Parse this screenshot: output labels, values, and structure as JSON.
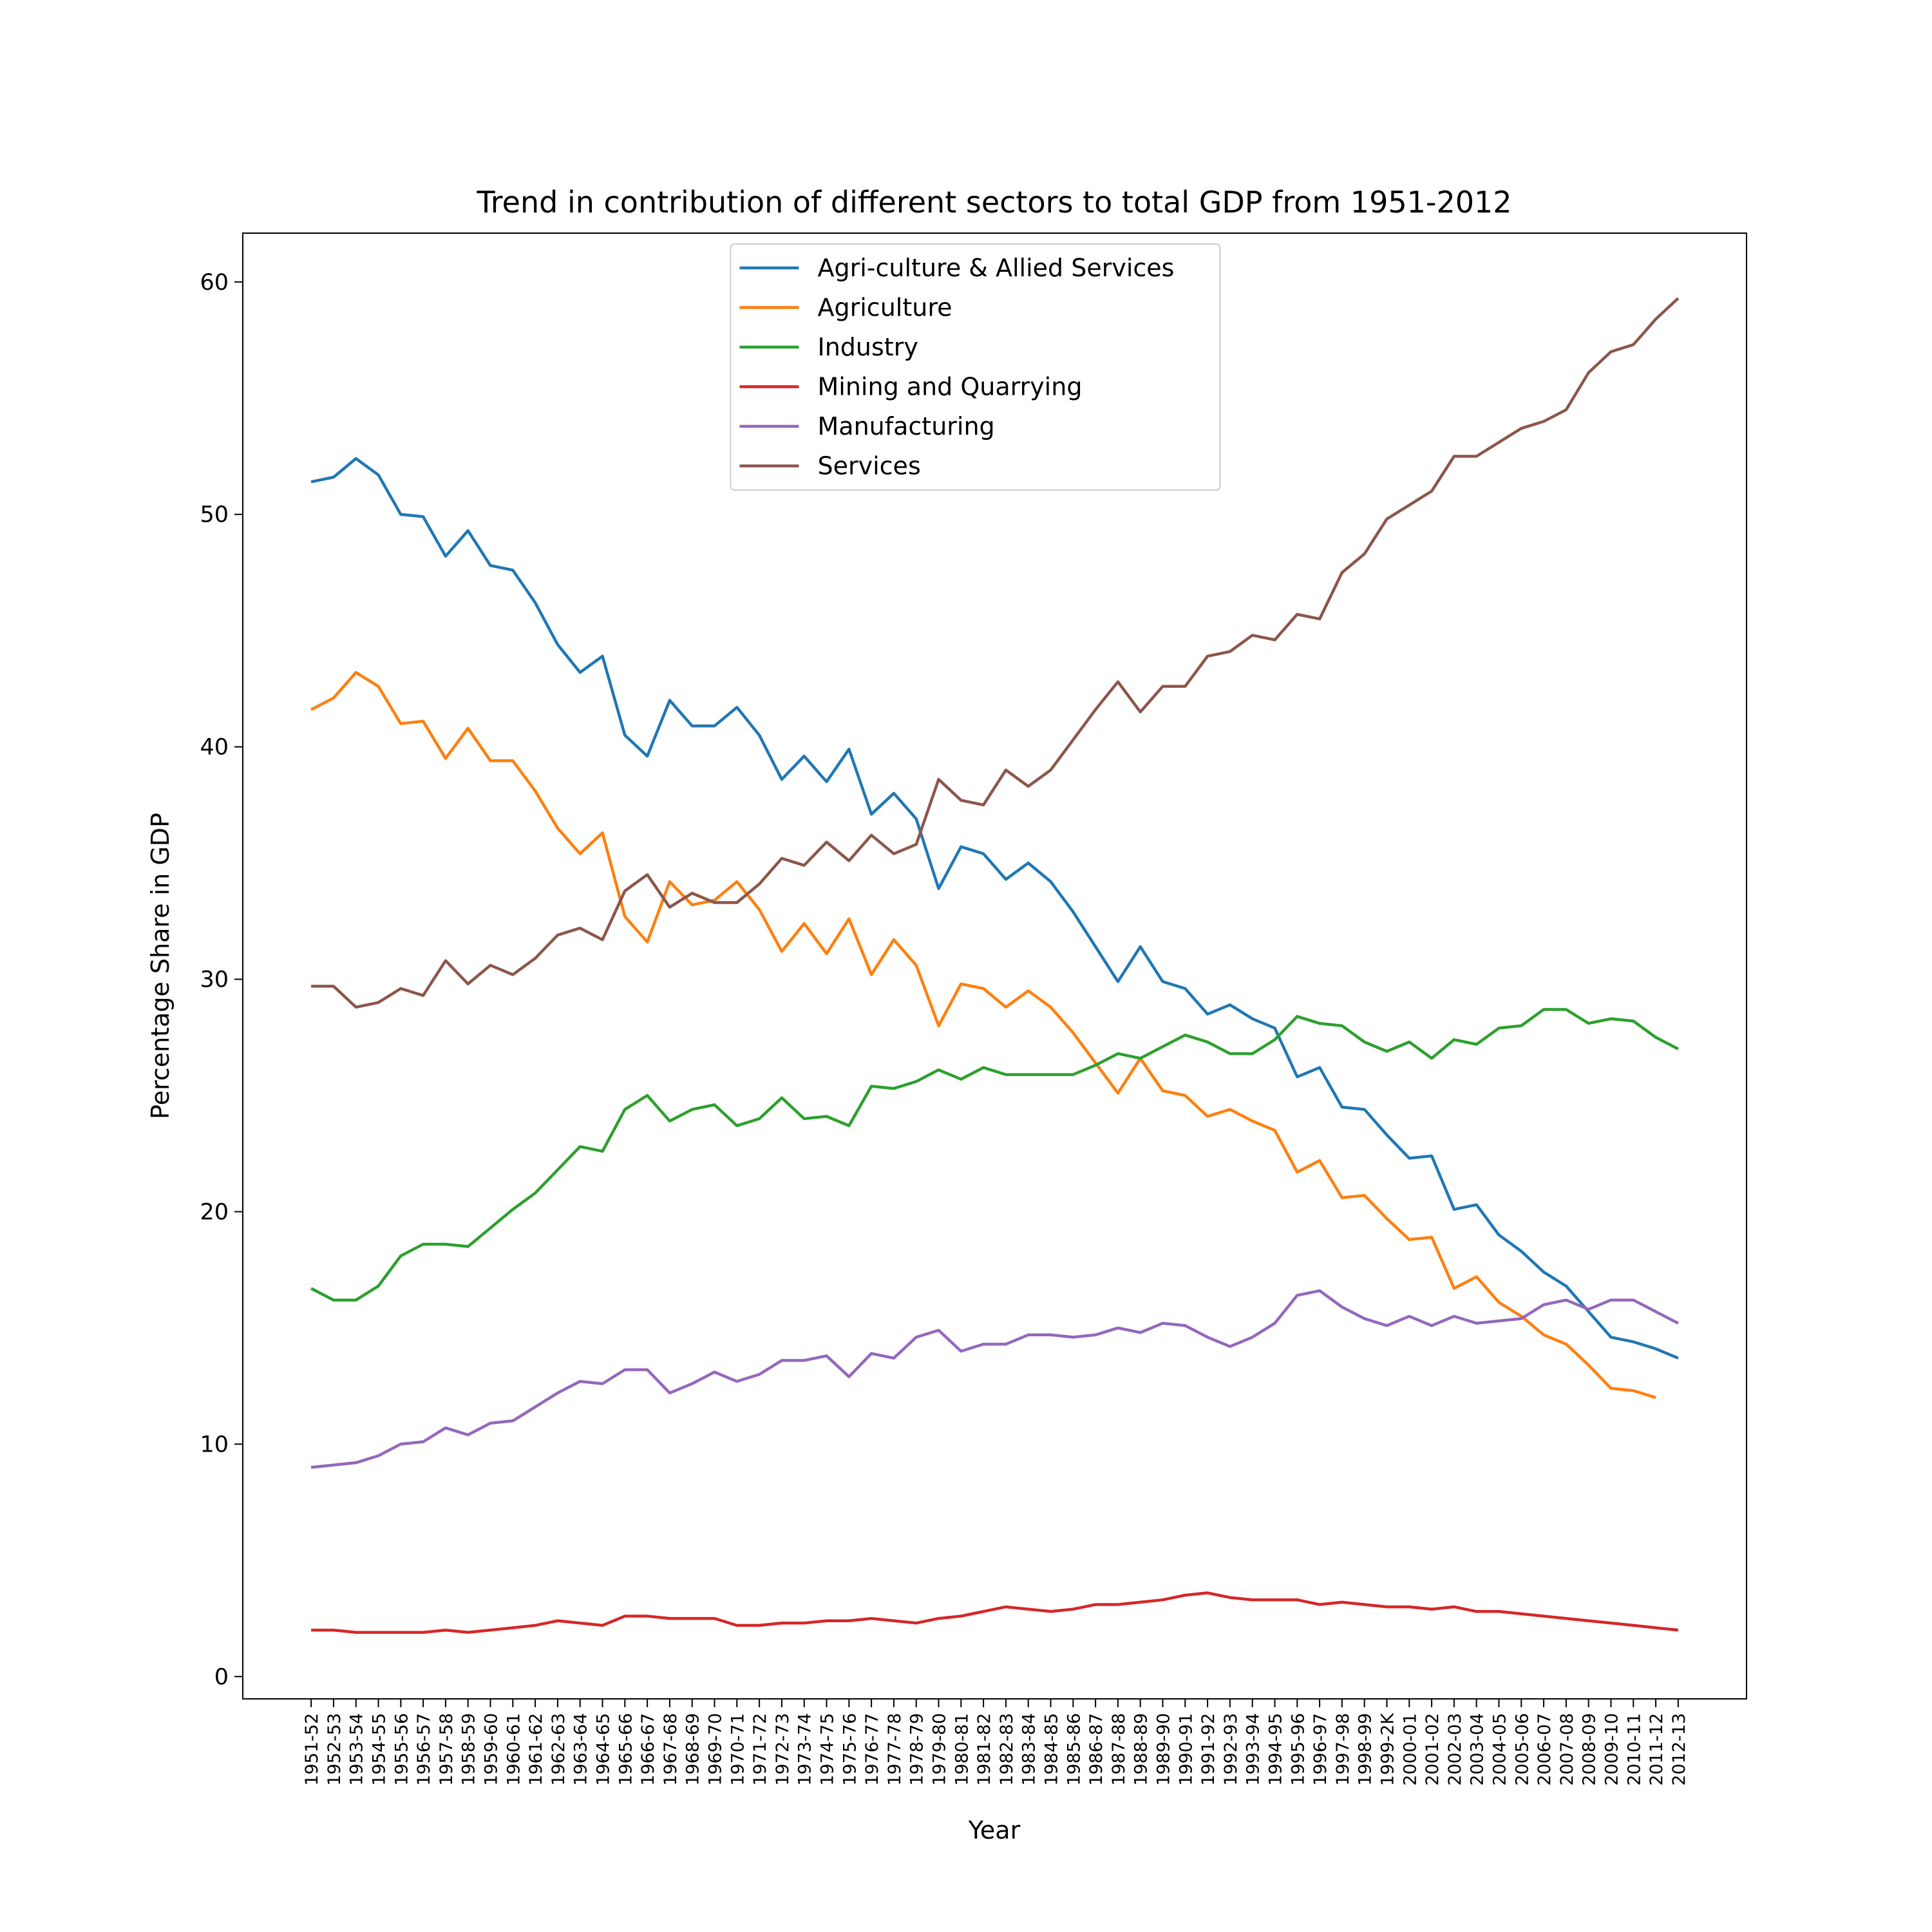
{
  "chart_data": {
    "type": "line",
    "title": "Trend in contribution of different sectors to total GDP from 1951-2012",
    "x_label": "Year",
    "y_label": "Percentage Share in GDP",
    "categories": [
      "1951-52",
      "1952-53",
      "1953-54",
      "1954-55",
      "1955-56",
      "1956-57",
      "1957-58",
      "1958-59",
      "1959-60",
      "1960-61",
      "1961-62",
      "1962-63",
      "1963-64",
      "1964-65",
      "1965-66",
      "1966-67",
      "1967-68",
      "1968-69",
      "1969-70",
      "1970-71",
      "1971-72",
      "1972-73",
      "1973-74",
      "1974-75",
      "1975-76",
      "1976-77",
      "1977-78",
      "1978-79",
      "1979-80",
      "1980-81",
      "1981-82",
      "1982-83",
      "1983-84",
      "1984-85",
      "1985-86",
      "1986-87",
      "1987-88",
      "1988-89",
      "1989-90",
      "1990-91",
      "1991-92",
      "1992-93",
      "1993-94",
      "1994-95",
      "1995-96",
      "1996-97",
      "1997-98",
      "1998-99",
      "1999-2K",
      "2000-01",
      "2001-02",
      "2002-03",
      "2003-04",
      "2004-05",
      "2005-06",
      "2006-07",
      "2007-08",
      "2008-09",
      "2009-10",
      "2010-11",
      "2011-12",
      "2012-13"
    ],
    "series": [
      {
        "name": "Agri-culture & Allied Services",
        "color": "#1f77b4",
        "values": [
          51.4,
          51.6,
          52.4,
          51.7,
          50.0,
          49.9,
          48.2,
          49.3,
          47.8,
          47.6,
          46.2,
          44.4,
          43.2,
          43.9,
          40.5,
          39.6,
          42.0,
          40.9,
          40.9,
          41.7,
          40.5,
          38.6,
          39.6,
          38.5,
          39.9,
          37.1,
          38.0,
          36.9,
          33.9,
          35.7,
          35.4,
          34.3,
          35.0,
          34.2,
          32.9,
          31.4,
          29.9,
          31.4,
          29.9,
          29.6,
          28.5,
          28.9,
          28.3,
          27.9,
          25.8,
          26.2,
          24.5,
          24.4,
          23.3,
          22.3,
          22.4,
          20.1,
          20.3,
          19.0,
          18.3,
          17.4,
          16.8,
          15.7,
          14.6,
          14.4,
          14.1,
          13.7
        ]
      },
      {
        "name": "Agriculture",
        "color": "#ff7f0e",
        "values": [
          41.6,
          42.1,
          43.2,
          42.6,
          41.0,
          41.1,
          39.5,
          40.8,
          39.4,
          39.4,
          38.1,
          36.5,
          35.4,
          36.3,
          32.7,
          31.6,
          34.2,
          33.2,
          33.4,
          34.2,
          33.0,
          31.2,
          32.4,
          31.1,
          32.6,
          30.2,
          31.7,
          30.6,
          28.0,
          29.8,
          29.6,
          28.8,
          29.5,
          28.8,
          27.7,
          26.4,
          25.1,
          26.6,
          25.2,
          25.0,
          24.1,
          24.4,
          23.9,
          23.5,
          21.7,
          22.2,
          20.6,
          20.7,
          19.7,
          18.8,
          18.9,
          16.7,
          17.2,
          16.1,
          15.5,
          14.7,
          14.3,
          13.4,
          12.4,
          12.3,
          12.0,
          null
        ]
      },
      {
        "name": "Industry",
        "color": "#2ca02c",
        "values": [
          16.7,
          16.2,
          16.2,
          16.8,
          18.1,
          18.6,
          18.6,
          18.5,
          19.3,
          20.1,
          20.8,
          21.8,
          22.8,
          22.6,
          24.4,
          25.0,
          23.9,
          24.4,
          24.6,
          23.7,
          24.0,
          24.9,
          24.0,
          24.1,
          23.7,
          25.4,
          25.3,
          25.6,
          26.1,
          25.7,
          26.2,
          25.9,
          25.9,
          25.9,
          25.9,
          26.3,
          26.8,
          26.6,
          27.1,
          27.6,
          27.3,
          26.8,
          26.8,
          27.4,
          28.4,
          28.1,
          28.0,
          27.3,
          26.9,
          27.3,
          26.6,
          27.4,
          27.2,
          27.9,
          28.0,
          28.7,
          28.7,
          28.1,
          28.3,
          28.2,
          27.5,
          27.0
        ]
      },
      {
        "name": "Mining and Quarrying",
        "color": "#d62728",
        "values": [
          2.0,
          2.0,
          1.9,
          1.9,
          1.9,
          1.9,
          2.0,
          1.9,
          2.0,
          2.1,
          2.2,
          2.4,
          2.3,
          2.2,
          2.6,
          2.6,
          2.5,
          2.5,
          2.5,
          2.2,
          2.2,
          2.3,
          2.3,
          2.4,
          2.4,
          2.5,
          2.4,
          2.3,
          2.5,
          2.6,
          2.8,
          3.0,
          2.9,
          2.8,
          2.9,
          3.1,
          3.1,
          3.2,
          3.3,
          3.5,
          3.6,
          3.4,
          3.3,
          3.3,
          3.3,
          3.1,
          3.2,
          3.1,
          3.0,
          3.0,
          2.9,
          3.0,
          2.8,
          2.8,
          2.7,
          2.6,
          2.5,
          2.4,
          2.3,
          2.2,
          2.1,
          2.0
        ]
      },
      {
        "name": "Manufacturing",
        "color": "#9467bd",
        "values": [
          9.0,
          9.1,
          9.2,
          9.5,
          10.0,
          10.1,
          10.7,
          10.4,
          10.9,
          11.0,
          11.6,
          12.2,
          12.7,
          12.6,
          13.2,
          13.2,
          12.2,
          12.6,
          13.1,
          12.7,
          13.0,
          13.6,
          13.6,
          13.8,
          12.9,
          13.9,
          13.7,
          14.6,
          14.9,
          14.0,
          14.3,
          14.3,
          14.7,
          14.7,
          14.6,
          14.7,
          15.0,
          14.8,
          15.2,
          15.1,
          14.6,
          14.2,
          14.6,
          15.2,
          16.4,
          16.6,
          15.9,
          15.4,
          15.1,
          15.5,
          15.1,
          15.5,
          15.2,
          15.3,
          15.4,
          16.0,
          16.2,
          15.8,
          16.2,
          16.2,
          15.7,
          15.2
        ]
      },
      {
        "name": "Services",
        "color": "#8c564b",
        "values": [
          29.7,
          29.7,
          28.8,
          29.0,
          29.6,
          29.3,
          30.8,
          29.8,
          30.6,
          30.2,
          30.9,
          31.9,
          32.2,
          31.7,
          33.8,
          34.5,
          33.1,
          33.7,
          33.3,
          33.3,
          34.1,
          35.2,
          34.9,
          35.9,
          35.1,
          36.2,
          35.4,
          35.8,
          38.6,
          37.7,
          37.5,
          39.0,
          38.3,
          39.0,
          40.3,
          41.6,
          42.8,
          41.5,
          42.6,
          42.6,
          43.9,
          44.1,
          44.8,
          44.6,
          45.7,
          45.5,
          47.5,
          48.3,
          49.8,
          50.4,
          51.0,
          52.5,
          52.5,
          53.1,
          53.7,
          54.0,
          54.5,
          56.1,
          57.0,
          57.3,
          58.4,
          59.3
        ]
      }
    ],
    "ylim": [
      -0.96,
      62.1
    ],
    "yticks": [
      0,
      10,
      20,
      30,
      40,
      50,
      60
    ],
    "legend": "upper center"
  }
}
